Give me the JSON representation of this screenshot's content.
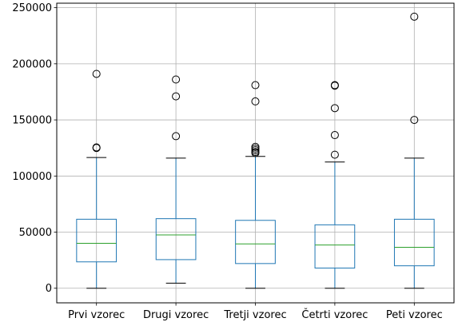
{
  "chart_data": {
    "type": "box",
    "title": "",
    "xlabel": "",
    "ylabel": "",
    "ylim": [
      -13000,
      254000
    ],
    "yticks": [
      0,
      50000,
      100000,
      150000,
      200000,
      250000
    ],
    "ytick_labels": [
      "0",
      "50000",
      "100000",
      "150000",
      "200000",
      "250000"
    ],
    "grid": true,
    "categories": [
      "Prvi vzorec",
      "Drugi vzorec",
      "Tretji vzorec",
      "Četrti vzorec",
      "Peti vzorec"
    ],
    "boxes": [
      {
        "whisker_low": 0,
        "q1": 23500,
        "median": 40000,
        "q3": 61500,
        "whisker_high": 116500,
        "outliers": [
          125000,
          125500,
          191000
        ]
      },
      {
        "whisker_low": 4500,
        "q1": 25500,
        "median": 47500,
        "q3": 62000,
        "whisker_high": 116000,
        "outliers": [
          135500,
          171000,
          186000
        ]
      },
      {
        "whisker_low": 0,
        "q1": 22000,
        "median": 39500,
        "q3": 60500,
        "whisker_high": 117500,
        "outliers": [
          120500,
          121500,
          123000,
          124500,
          126000,
          166500,
          181000
        ]
      },
      {
        "whisker_low": 0,
        "q1": 18000,
        "median": 38500,
        "q3": 56500,
        "whisker_high": 112500,
        "outliers": [
          119000,
          136500,
          160500,
          180500,
          181000
        ]
      },
      {
        "whisker_low": 0,
        "q1": 20000,
        "median": 36500,
        "q3": 61500,
        "whisker_high": 116000,
        "outliers": [
          150000,
          242000
        ]
      }
    ],
    "colors": {
      "box": "#1f77b4",
      "median": "#2ca02c",
      "whisker_cap": "#000000",
      "outlier": "#000000",
      "grid": "#b0b0b0"
    }
  }
}
